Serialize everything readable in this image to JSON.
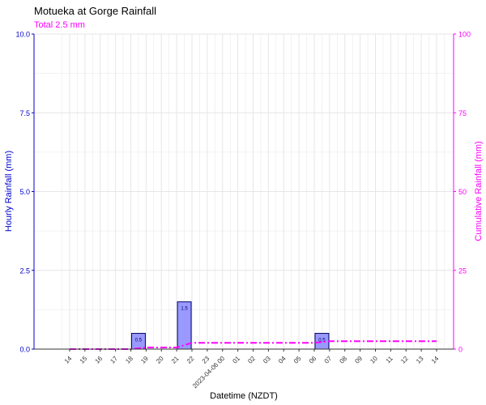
{
  "colors": {
    "hourly": "#0000cc",
    "cumulative": "#ff00ff",
    "bar_fill": "#9999ff",
    "bar_stroke": "#000066",
    "grid": "#e6e6e6",
    "text": "#333333"
  },
  "chart_data": {
    "type": "bar",
    "title": "Motueka at Gorge Rainfall",
    "subtitle": "Total 2.5 mm",
    "xlabel": "Datetime (NZDT)",
    "ylabel": "Hourly Rainfall (mm)",
    "y2label": "Cumulative Rainfall (mm)",
    "ylim": [
      0,
      10
    ],
    "y2lim": [
      0,
      100
    ],
    "y_ticks": [
      "0.0",
      "2.5",
      "5.0",
      "7.5",
      "10.0"
    ],
    "y2_ticks": [
      "0",
      "25",
      "50",
      "75",
      "100"
    ],
    "categories": [
      "14",
      "15",
      "16",
      "17",
      "18",
      "19",
      "20",
      "21",
      "22",
      "23",
      "2023-04-06 00",
      "01",
      "02",
      "03",
      "04",
      "05",
      "06",
      "07",
      "08",
      "09",
      "10",
      "11",
      "12",
      "13",
      "14"
    ],
    "grid": true,
    "series": [
      {
        "kind": "bar",
        "axis": "left",
        "values": [
          0,
          0,
          0,
          0,
          0,
          0.5,
          0,
          0,
          1.5,
          0,
          0,
          0,
          0,
          0,
          0,
          0,
          0,
          0.5,
          0,
          0,
          0,
          0,
          0,
          0,
          0
        ],
        "labels": [
          "",
          "",
          "",
          "",
          "",
          "0.5",
          "",
          "",
          "1.5",
          "",
          "",
          "",
          "",
          "",
          "",
          "",
          "",
          "0.5",
          "",
          "",
          "",
          "",
          "",
          "",
          ""
        ]
      },
      {
        "kind": "line",
        "axis": "right",
        "style": "dash-dot",
        "values": [
          0,
          0,
          0,
          0,
          0,
          0.5,
          0.5,
          0.5,
          2.0,
          2.0,
          2.0,
          2.0,
          2.0,
          2.0,
          2.0,
          2.0,
          2.0,
          2.5,
          2.5,
          2.5,
          2.5,
          2.5,
          2.5,
          2.5,
          2.5
        ]
      }
    ]
  }
}
